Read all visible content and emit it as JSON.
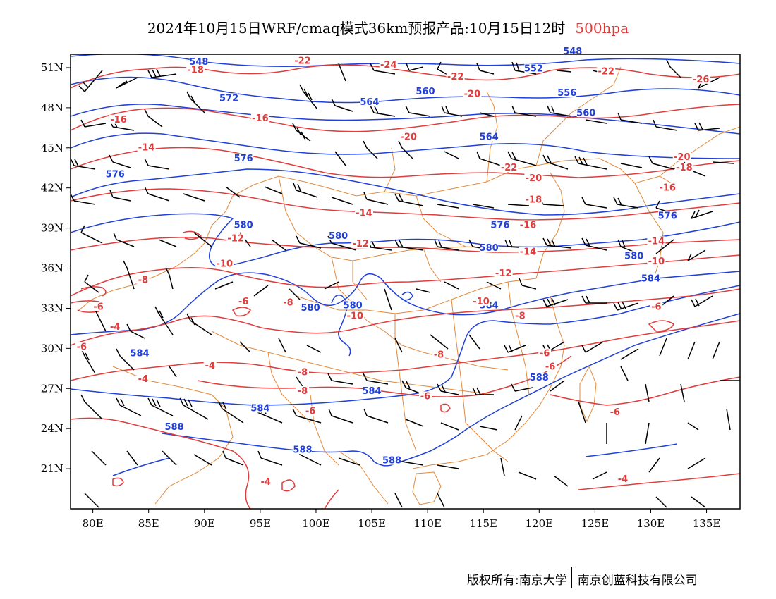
{
  "title": {
    "text": "2024年10月15日WRF/cmaq模式36km预报产品:10月15日12时",
    "level": "500hpa"
  },
  "copyright": {
    "owner": "版权所有:南京大学",
    "partner": "南京创蓝科技有限公司"
  },
  "colors": {
    "height_contour": "#2040d8",
    "temperature_contour": "#e03c3c",
    "boundary": "#e08a3c",
    "wind_barb": "#000000"
  },
  "axes": {
    "lon_ticks": [
      "80E",
      "85E",
      "90E",
      "95E",
      "100E",
      "105E",
      "110E",
      "115E",
      "120E",
      "125E",
      "130E",
      "135E"
    ],
    "lat_ticks": [
      "51N",
      "48N",
      "45N",
      "42N",
      "39N",
      "36N",
      "33N",
      "30N",
      "27N",
      "24N",
      "21N"
    ]
  },
  "chart_data": {
    "type": "map",
    "variables": [
      "geopotential height (dagpm)",
      "temperature (°C)",
      "wind barbs"
    ],
    "lon_range": [
      78,
      138
    ],
    "lat_range": [
      18,
      52
    ],
    "height_contours": [
      {
        "value": "548",
        "label_lonlat": [
          89.5,
          51.2
        ]
      },
      {
        "value": "548",
        "label_lonlat": [
          123,
          52.0
        ]
      },
      {
        "value": "552",
        "label_lonlat": [
          119.5,
          50.7
        ]
      },
      {
        "value": "556",
        "label_lonlat": [
          122.5,
          48.9
        ]
      },
      {
        "value": "560",
        "label_lonlat": [
          109.8,
          49.0
        ]
      },
      {
        "value": "560",
        "label_lonlat": [
          124.2,
          47.4
        ]
      },
      {
        "value": "564",
        "label_lonlat": [
          104.8,
          48.2
        ]
      },
      {
        "value": "564",
        "label_lonlat": [
          115.5,
          45.6
        ]
      },
      {
        "value": "572",
        "label_lonlat": [
          92.2,
          48.5
        ]
      },
      {
        "value": "576",
        "label_lonlat": [
          93.5,
          44.0
        ]
      },
      {
        "value": "576",
        "label_lonlat": [
          82.0,
          42.8
        ]
      },
      {
        "value": "576",
        "label_lonlat": [
          116.5,
          39.0
        ]
      },
      {
        "value": "576",
        "label_lonlat": [
          131.5,
          39.7
        ]
      },
      {
        "value": "580",
        "label_lonlat": [
          93.5,
          39.0
        ]
      },
      {
        "value": "580",
        "label_lonlat": [
          102.0,
          38.2
        ]
      },
      {
        "value": "580",
        "label_lonlat": [
          115.5,
          37.3
        ]
      },
      {
        "value": "580",
        "label_lonlat": [
          128.5,
          36.7
        ]
      },
      {
        "value": "580",
        "label_lonlat": [
          99.5,
          32.8
        ]
      },
      {
        "value": "580",
        "label_lonlat": [
          103.3,
          33.0
        ]
      },
      {
        "value": "584",
        "label_lonlat": [
          115.5,
          33.0
        ]
      },
      {
        "value": "584",
        "label_lonlat": [
          130.0,
          35.0
        ]
      },
      {
        "value": "584",
        "label_lonlat": [
          105.0,
          26.6
        ]
      },
      {
        "value": "584",
        "label_lonlat": [
          95.0,
          25.3
        ]
      },
      {
        "value": "584",
        "label_lonlat": [
          84.2,
          29.4
        ]
      },
      {
        "value": "588",
        "label_lonlat": [
          87.3,
          23.9
        ]
      },
      {
        "value": "588",
        "label_lonlat": [
          120.0,
          27.6
        ]
      },
      {
        "value": "588",
        "label_lonlat": [
          98.8,
          22.2
        ]
      },
      {
        "value": "588",
        "label_lonlat": [
          106.8,
          21.4
        ]
      }
    ],
    "temperature_contours": [
      {
        "value": "-18",
        "label_lonlat": [
          89.2,
          50.6
        ]
      },
      {
        "value": "-22",
        "label_lonlat": [
          98.8,
          51.3
        ]
      },
      {
        "value": "-24",
        "label_lonlat": [
          106.5,
          51.0
        ]
      },
      {
        "value": "-22",
        "label_lonlat": [
          112.5,
          50.1
        ]
      },
      {
        "value": "-22",
        "label_lonlat": [
          126.0,
          50.5
        ]
      },
      {
        "value": "-26",
        "label_lonlat": [
          134.5,
          49.9
        ]
      },
      {
        "value": "-20",
        "label_lonlat": [
          114.0,
          48.8
        ]
      },
      {
        "value": "-16",
        "label_lonlat": [
          95.0,
          47.0
        ]
      },
      {
        "value": "-16",
        "label_lonlat": [
          82.3,
          46.9
        ]
      },
      {
        "value": "-20",
        "label_lonlat": [
          108.3,
          45.6
        ]
      },
      {
        "value": "-14",
        "label_lonlat": [
          84.8,
          44.8
        ]
      },
      {
        "value": "-22",
        "label_lonlat": [
          117.3,
          43.3
        ]
      },
      {
        "value": "-20",
        "label_lonlat": [
          119.5,
          42.5
        ]
      },
      {
        "value": "-20",
        "label_lonlat": [
          132.8,
          44.1
        ]
      },
      {
        "value": "-18",
        "label_lonlat": [
          133.0,
          43.3
        ]
      },
      {
        "value": "-16",
        "label_lonlat": [
          131.5,
          41.8
        ]
      },
      {
        "value": "-18",
        "label_lonlat": [
          119.5,
          40.9
        ]
      },
      {
        "value": "-14",
        "label_lonlat": [
          104.3,
          39.9
        ]
      },
      {
        "value": "-16",
        "label_lonlat": [
          119.0,
          39.0
        ]
      },
      {
        "value": "-12",
        "label_lonlat": [
          92.8,
          38.0
        ]
      },
      {
        "value": "-12",
        "label_lonlat": [
          104.0,
          37.6
        ]
      },
      {
        "value": "-14",
        "label_lonlat": [
          119.0,
          37.0
        ]
      },
      {
        "value": "-14",
        "label_lonlat": [
          130.5,
          37.8
        ]
      },
      {
        "value": "-10",
        "label_lonlat": [
          130.5,
          36.3
        ]
      },
      {
        "value": "-10",
        "label_lonlat": [
          91.8,
          36.1
        ]
      },
      {
        "value": "-12",
        "label_lonlat": [
          116.8,
          35.4
        ]
      },
      {
        "value": "-8",
        "label_lonlat": [
          84.5,
          34.9
        ]
      },
      {
        "value": "-6",
        "label_lonlat": [
          80.5,
          32.9
        ]
      },
      {
        "value": "-6",
        "label_lonlat": [
          93.5,
          33.3
        ]
      },
      {
        "value": "-8",
        "label_lonlat": [
          97.5,
          33.2
        ]
      },
      {
        "value": "-10",
        "label_lonlat": [
          114.8,
          33.3
        ]
      },
      {
        "value": "-10",
        "label_lonlat": [
          103.5,
          32.2
        ]
      },
      {
        "value": "-8",
        "label_lonlat": [
          118.3,
          32.2
        ]
      },
      {
        "value": "-6",
        "label_lonlat": [
          130.5,
          32.9
        ]
      },
      {
        "value": "-4",
        "label_lonlat": [
          82.0,
          31.4
        ]
      },
      {
        "value": "-6",
        "label_lonlat": [
          79.0,
          29.9
        ]
      },
      {
        "value": "-8",
        "label_lonlat": [
          111.0,
          29.3
        ]
      },
      {
        "value": "-6",
        "label_lonlat": [
          120.5,
          29.4
        ]
      },
      {
        "value": "-6",
        "label_lonlat": [
          121.0,
          28.4
        ]
      },
      {
        "value": "-4",
        "label_lonlat": [
          90.5,
          28.5
        ]
      },
      {
        "value": "-8",
        "label_lonlat": [
          98.8,
          28.0
        ]
      },
      {
        "value": "-4",
        "label_lonlat": [
          84.5,
          27.5
        ]
      },
      {
        "value": "-8",
        "label_lonlat": [
          98.8,
          26.6
        ]
      },
      {
        "value": "-6",
        "label_lonlat": [
          109.8,
          26.2
        ]
      },
      {
        "value": "-6",
        "label_lonlat": [
          99.5,
          25.1
        ]
      },
      {
        "value": "-6",
        "label_lonlat": [
          126.8,
          25.0
        ]
      },
      {
        "value": "-4",
        "label_lonlat": [
          95.5,
          19.8
        ]
      },
      {
        "value": "-4",
        "label_lonlat": [
          127.5,
          20.0
        ]
      }
    ]
  }
}
